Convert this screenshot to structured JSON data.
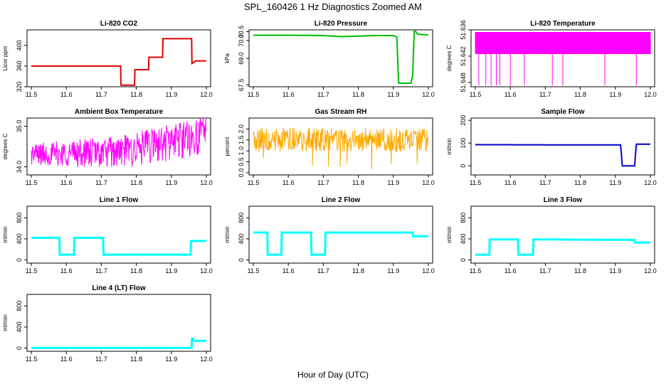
{
  "figure": {
    "title": "SPL_160426  1 Hz Diagnostics Zoomed AM",
    "xlabel": "Hour of Day (UTC)"
  },
  "chart_data": [
    {
      "type": "line",
      "title": "Li-820 CO2",
      "ylabel": "Licor ppm",
      "color": "#dd0000",
      "xlim": [
        11.5,
        12.0
      ],
      "ylim": [
        320,
        430
      ],
      "xticks": [
        "11.5",
        "11.6",
        "11.7",
        "11.8",
        "11.9",
        "12.0"
      ],
      "yticks": [
        {
          "v": 320,
          "t": "320"
        },
        {
          "v": 360,
          "t": "360"
        },
        {
          "v": 400,
          "t": "400"
        }
      ],
      "series": [
        {
          "x": [
            11.5,
            11.755,
            11.756,
            11.795,
            11.796,
            11.835,
            11.836,
            11.875,
            11.876,
            11.958,
            11.959,
            11.97,
            12.0
          ],
          "y": [
            360,
            360,
            323,
            323,
            353,
            353,
            377,
            377,
            413,
            413,
            365,
            370,
            370
          ]
        }
      ]
    },
    {
      "type": "line",
      "title": "Li-820 Pressure",
      "ylabel": "kPa",
      "color": "#00bb00",
      "xlim": [
        11.5,
        12.0
      ],
      "ylim": [
        67.4,
        70.6
      ],
      "xticks": [
        "11.5",
        "11.6",
        "11.7",
        "11.8",
        "11.9",
        "12.0"
      ],
      "yticks": [
        {
          "v": 67.5,
          "t": "67.5"
        },
        {
          "v": 69.0,
          "t": "69.0"
        },
        {
          "v": 70.0,
          "t": "70.0"
        },
        {
          "v": 70.5,
          "t": "70.5"
        }
      ],
      "series": [
        {
          "x": [
            11.5,
            11.6,
            11.7,
            11.75,
            11.8,
            11.85,
            11.9,
            11.91,
            11.915,
            11.95,
            11.955,
            11.96,
            11.97,
            12.0
          ],
          "y": [
            70.3,
            70.3,
            70.28,
            70.22,
            70.25,
            70.28,
            70.28,
            70.2,
            67.6,
            67.6,
            68.0,
            70.6,
            70.35,
            70.32
          ]
        }
      ]
    },
    {
      "type": "line",
      "title": "Li-820 Temperature",
      "ylabel": "degrees C",
      "color": "#ff00ff",
      "xlim": [
        11.5,
        12.0
      ],
      "ylim": [
        51.649,
        51.636
      ],
      "xticks": [
        "11.5",
        "11.6",
        "11.7",
        "11.8",
        "11.9",
        "12.0"
      ],
      "yticks": [
        {
          "v": 51.636,
          "t": "51.636"
        },
        {
          "v": 51.642,
          "t": "51.642"
        },
        {
          "v": 51.648,
          "t": "51.648"
        }
      ],
      "series": [
        {
          "x": [
            11.5,
            12.0
          ],
          "y": [
            51.643,
            51.643
          ]
        }
      ]
    },
    {
      "type": "line",
      "title": "Ambient Box Temperature",
      "ylabel": "degrees C",
      "color": "#ff00ff",
      "xlim": [
        11.5,
        12.0
      ],
      "ylim": [
        33.8,
        35.2
      ],
      "xticks": [
        "11.5",
        "11.6",
        "11.7",
        "11.8",
        "11.9",
        "12.0"
      ],
      "yticks": [
        {
          "v": 34.0,
          "t": "34.0"
        },
        {
          "v": 35.0,
          "t": "35.0"
        }
      ],
      "series": [
        {
          "x": [
            11.5,
            11.75,
            11.85,
            12.0
          ],
          "y": [
            34.2,
            34.2,
            34.35,
            34.6
          ]
        }
      ]
    },
    {
      "type": "line",
      "title": "Gas Stream RH",
      "ylabel": "percent",
      "color": "#ffaa00",
      "xlim": [
        11.5,
        12.0
      ],
      "ylim": [
        -0.1,
        2.5
      ],
      "xticks": [
        "11.5",
        "11.6",
        "11.7",
        "11.8",
        "11.9",
        "12.0"
      ],
      "yticks": [
        {
          "v": 0.0,
          "t": "0.0"
        },
        {
          "v": 0.5,
          "t": "0.5"
        },
        {
          "v": 1.0,
          "t": "1.0"
        },
        {
          "v": 1.5,
          "t": "1.5"
        },
        {
          "v": 2.0,
          "t": "2.0"
        }
      ],
      "series": [
        {
          "x": [
            11.5,
            12.0
          ],
          "y": [
            1.5,
            1.5
          ]
        }
      ]
    },
    {
      "type": "line",
      "title": "Sample Flow",
      "ylabel": "ml/min",
      "color": "#0000cc",
      "xlim": [
        11.5,
        12.0
      ],
      "ylim": [
        -40,
        210
      ],
      "xticks": [
        "11.5",
        "11.6",
        "11.7",
        "11.8",
        "11.9",
        "12.0"
      ],
      "yticks": [
        {
          "v": 0,
          "t": "0"
        },
        {
          "v": 100,
          "t": "100"
        },
        {
          "v": 200,
          "t": "200"
        }
      ],
      "series": [
        {
          "x": [
            11.5,
            11.8,
            11.85,
            11.915,
            11.92,
            11.955,
            11.96,
            12.0
          ],
          "y": [
            93,
            92,
            92,
            92,
            0,
            0,
            95,
            95
          ]
        }
      ]
    },
    {
      "type": "line",
      "title": "Line 1 Flow",
      "ylabel": "ml/min",
      "color": "#00ffff",
      "xlim": [
        11.5,
        12.0
      ],
      "ylim": [
        -60,
        1020
      ],
      "xticks": [
        "11.5",
        "11.6",
        "11.7",
        "11.8",
        "11.9",
        "12.0"
      ],
      "yticks": [
        {
          "v": 0,
          "t": "0"
        },
        {
          "v": 400,
          "t": "400"
        },
        {
          "v": 800,
          "t": "800"
        }
      ],
      "series": [
        {
          "x": [
            11.5,
            11.58,
            11.581,
            11.622,
            11.623,
            11.705,
            11.706,
            11.955,
            11.956,
            12.0
          ],
          "y": [
            420,
            420,
            100,
            100,
            420,
            420,
            100,
            100,
            360,
            360
          ]
        }
      ]
    },
    {
      "type": "line",
      "title": "Line 2 Flow",
      "ylabel": "ml/min",
      "color": "#00ffff",
      "xlim": [
        11.5,
        12.0
      ],
      "ylim": [
        -60,
        1020
      ],
      "xticks": [
        "11.5",
        "11.6",
        "11.7",
        "11.8",
        "11.9",
        "12.0"
      ],
      "yticks": [
        {
          "v": 0,
          "t": "0"
        },
        {
          "v": 400,
          "t": "400"
        },
        {
          "v": 800,
          "t": "800"
        }
      ],
      "series": [
        {
          "x": [
            11.5,
            11.54,
            11.541,
            11.58,
            11.581,
            11.665,
            11.666,
            11.705,
            11.706,
            11.955,
            11.956,
            12.0
          ],
          "y": [
            520,
            520,
            100,
            100,
            520,
            520,
            100,
            100,
            520,
            520,
            450,
            450
          ]
        }
      ]
    },
    {
      "type": "line",
      "title": "Line 3 Flow",
      "ylabel": "ml/min",
      "color": "#00ffff",
      "xlim": [
        11.5,
        12.0
      ],
      "ylim": [
        -60,
        1020
      ],
      "xticks": [
        "11.5",
        "11.6",
        "11.7",
        "11.8",
        "11.9",
        "12.0"
      ],
      "yticks": [
        {
          "v": 0,
          "t": "0"
        },
        {
          "v": 400,
          "t": "400"
        },
        {
          "v": 800,
          "t": "800"
        }
      ],
      "series": [
        {
          "x": [
            11.5,
            11.54,
            11.541,
            11.622,
            11.623,
            11.665,
            11.666,
            11.955,
            11.956,
            12.0
          ],
          "y": [
            100,
            100,
            390,
            390,
            100,
            100,
            390,
            380,
            330,
            330
          ]
        }
      ]
    },
    {
      "type": "line",
      "title": "Line 4 (LT) Flow",
      "ylabel": "ml/min",
      "color": "#00ffff",
      "xlim": [
        11.5,
        12.0
      ],
      "ylim": [
        -60,
        1020
      ],
      "xticks": [
        "11.5",
        "11.6",
        "11.7",
        "11.8",
        "11.9",
        "12.0"
      ],
      "yticks": [
        {
          "v": 0,
          "t": "0"
        },
        {
          "v": 400,
          "t": "400"
        },
        {
          "v": 800,
          "t": "800"
        }
      ],
      "series": [
        {
          "x": [
            11.5,
            11.958,
            11.959,
            11.962,
            11.963,
            12.0
          ],
          "y": [
            5,
            5,
            180,
            180,
            140,
            140
          ]
        }
      ]
    }
  ]
}
